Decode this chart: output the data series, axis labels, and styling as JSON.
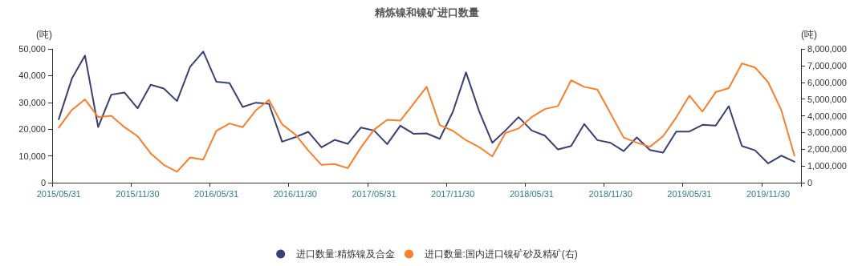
{
  "chart_data": {
    "type": "line",
    "title": "精炼镍和镍矿进口数量",
    "ylabel": "(吨)",
    "y2label": "(吨)",
    "categories": [
      "2015/05/31",
      null,
      null,
      null,
      null,
      null,
      "2015/11/30",
      null,
      null,
      null,
      null,
      null,
      "2016/05/31",
      null,
      null,
      null,
      null,
      null,
      "2016/11/30",
      null,
      null,
      null,
      null,
      null,
      "2017/05/31",
      null,
      null,
      null,
      null,
      null,
      "2017/11/30",
      null,
      null,
      null,
      null,
      null,
      "2018/05/31",
      null,
      null,
      null,
      null,
      null,
      "2018/11/30",
      null,
      null,
      null,
      null,
      null,
      "2019/05/31",
      null,
      null,
      null,
      null,
      null,
      "2019/11/30",
      null,
      null
    ],
    "series": [
      {
        "name": "进口数量:精炼镍及合金",
        "color": "#3b3f74",
        "values": [
          23700,
          38900,
          47500,
          20800,
          32900,
          33700,
          27800,
          36600,
          35200,
          30500,
          43300,
          49000,
          37700,
          37200,
          28300,
          29900,
          29500,
          15300,
          17000,
          19000,
          13200,
          16000,
          14500,
          20600,
          19500,
          14400,
          21300,
          18300,
          18400,
          16400,
          26500,
          41200,
          26700,
          14900,
          19500,
          24500,
          19500,
          17600,
          12400,
          13700,
          21900,
          15900,
          14900,
          11800,
          16900,
          12200,
          11200,
          19100,
          19100,
          21600,
          21300,
          28600,
          13700,
          12100,
          7200,
          10100,
          7800
        ]
      },
      {
        "name": "进口数量:国内进口镍矿砂及精矿(右)",
        "color": "#fb7f2a",
        "axis": "y2",
        "values": [
          3290000,
          4350000,
          4980000,
          3920000,
          4000000,
          3320000,
          2780000,
          1750000,
          1060000,
          650000,
          1510000,
          1380000,
          3100000,
          3540000,
          3320000,
          4320000,
          4950000,
          3490000,
          2890000,
          1920000,
          1060000,
          1110000,
          870000,
          2100000,
          3170000,
          3760000,
          3710000,
          4710000,
          5730000,
          3440000,
          3100000,
          2540000,
          2130000,
          1570000,
          2970000,
          3240000,
          3920000,
          4400000,
          4580000,
          6120000,
          5730000,
          5570000,
          4140000,
          2700000,
          2390000,
          2150000,
          2780000,
          3900000,
          5200000,
          4250000,
          5410000,
          5650000,
          7130000,
          6890000,
          6000000,
          4340000,
          1620000
        ]
      }
    ],
    "ylim": [
      0,
      50000
    ],
    "yticks": [
      0,
      {
        "value": 10000,
        "label": "10,000"
      },
      {
        "value": 20000,
        "label": "20,000"
      },
      {
        "value": 30000,
        "label": "30,000"
      },
      {
        "value": 40000,
        "label": "40,000"
      },
      {
        "value": 50000,
        "label": "50,000"
      }
    ],
    "y2lim": [
      0,
      8000000
    ],
    "y2ticks": [
      0,
      {
        "value": 1000000,
        "label": "1,000,000"
      },
      {
        "value": 2000000,
        "label": "2,000,000"
      },
      {
        "value": 3000000,
        "label": "3,000,000"
      },
      {
        "value": 4000000,
        "label": "4,000,000"
      },
      {
        "value": 5000000,
        "label": "5,000,000"
      },
      {
        "value": 6000000,
        "label": "6,000,000"
      },
      {
        "value": 7000000,
        "label": "7,000,000"
      },
      {
        "value": 8000000,
        "label": "8,000,000"
      }
    ],
    "legend": "bottom",
    "marker": "none",
    "line_style": "solid",
    "grid": false
  }
}
